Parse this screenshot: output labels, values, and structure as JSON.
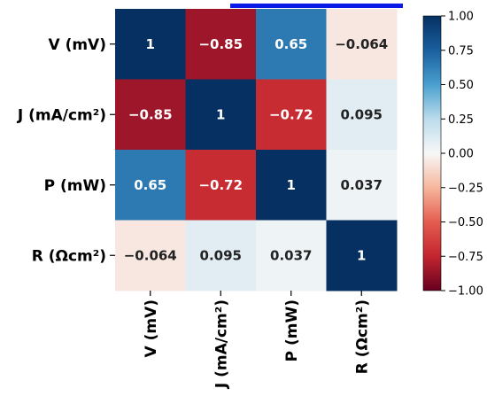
{
  "chart_data": {
    "type": "heatmap",
    "labels": [
      "V (mV)",
      "J (mA/cm²)",
      "P (mW)",
      "R (Ωcm²)"
    ],
    "matrix": [
      [
        1,
        -0.85,
        0.65,
        -0.064
      ],
      [
        -0.85,
        1,
        -0.72,
        0.095
      ],
      [
        0.65,
        -0.72,
        1,
        0.037
      ],
      [
        -0.064,
        0.095,
        0.037,
        1
      ]
    ],
    "cell_labels": [
      [
        "1",
        "−0.85",
        "0.65",
        "−0.064"
      ],
      [
        "−0.85",
        "1",
        "−0.72",
        "0.095"
      ],
      [
        "0.65",
        "−0.72",
        "1",
        "0.037"
      ],
      [
        "−0.064",
        "0.095",
        "0.037",
        "1"
      ]
    ],
    "colorbar": {
      "vmin": -1.0,
      "vmax": 1.0,
      "tick_labels": [
        "1.00",
        "0.75",
        "0.50",
        "0.25",
        "0.00",
        "−0.25",
        "−0.50",
        "−0.75",
        "−1.00"
      ],
      "colormap": "RdBu"
    }
  }
}
